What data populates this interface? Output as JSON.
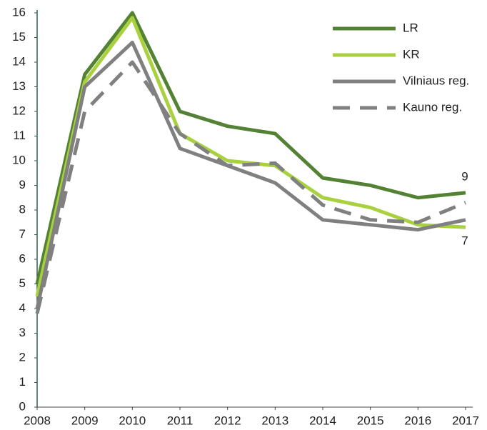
{
  "chart_data": {
    "type": "line",
    "x": [
      2008,
      2009,
      2010,
      2011,
      2012,
      2013,
      2014,
      2015,
      2016,
      2017
    ],
    "xlim": [
      2008,
      2017
    ],
    "xticks": [
      2008,
      2009,
      2010,
      2011,
      2012,
      2013,
      2014,
      2015,
      2016,
      2017
    ],
    "ylim": [
      0,
      16
    ],
    "yticks": [
      0,
      1,
      2,
      3,
      4,
      5,
      6,
      7,
      8,
      9,
      10,
      11,
      12,
      13,
      14,
      15,
      16
    ],
    "grid": false,
    "legend": "upper right",
    "series": [
      {
        "name": "LR",
        "color": "#548235",
        "dash": false,
        "values": [
          5.0,
          13.5,
          16.0,
          12.0,
          11.4,
          11.1,
          9.3,
          9.0,
          8.5,
          8.7
        ]
      },
      {
        "name": "KR",
        "color": "#a9d13f",
        "dash": false,
        "values": [
          4.5,
          13.2,
          15.8,
          11.1,
          10.0,
          9.8,
          8.5,
          8.1,
          7.4,
          7.3
        ]
      },
      {
        "name": "Vilniaus reg.",
        "color": "#808080",
        "dash": false,
        "values": [
          4.0,
          13.0,
          14.8,
          10.5,
          9.8,
          9.1,
          7.6,
          7.4,
          7.2,
          7.6
        ]
      },
      {
        "name": "Kauno reg.",
        "color": "#808080",
        "dash": true,
        "values": [
          3.8,
          12.0,
          14.0,
          11.1,
          9.8,
          9.9,
          8.2,
          7.6,
          7.5,
          8.3
        ]
      }
    ],
    "annotations": [
      {
        "text": "9",
        "series": 0
      },
      {
        "text": "7",
        "series": 1
      }
    ]
  }
}
